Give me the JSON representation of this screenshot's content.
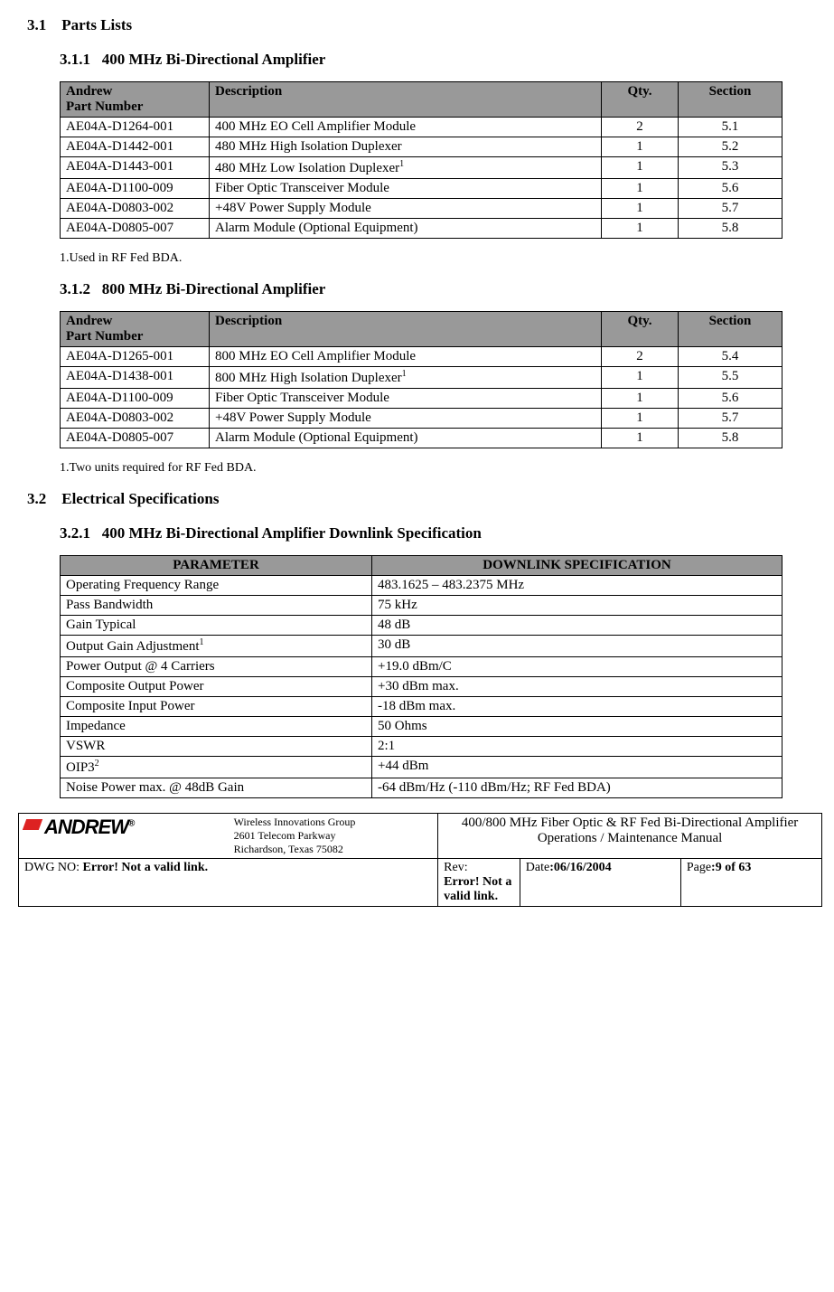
{
  "sec31": {
    "num": "3.1",
    "title": "Parts Lists"
  },
  "sec311": {
    "num": "3.1.1",
    "title": "400 MHz Bi-Directional Amplifier"
  },
  "thead": {
    "c1": "Andrew\nPart Number",
    "c2": "Description",
    "c3": "Qty.",
    "c4": "Section"
  },
  "t1rows": [
    {
      "pn": "AE04A-D1264-001",
      "desc": "400 MHz EO Cell Amplifier Module",
      "qty": "2",
      "sec": "5.1",
      "sup": ""
    },
    {
      "pn": "AE04A-D1442-001",
      "desc": "480 MHz High Isolation Duplexer",
      "qty": "1",
      "sec": "5.2",
      "sup": ""
    },
    {
      "pn": "AE04A-D1443-001",
      "desc": "480 MHz Low Isolation Duplexer",
      "qty": "1",
      "sec": "5.3",
      "sup": "1"
    },
    {
      "pn": "AE04A-D1100-009",
      "desc": "Fiber Optic Transceiver Module",
      "qty": "1",
      "sec": "5.6",
      "sup": ""
    },
    {
      "pn": "AE04A-D0803-002",
      "desc": "+48V Power Supply Module",
      "qty": "1",
      "sec": "5.7",
      "sup": ""
    },
    {
      "pn": "AE04A-D0805-007",
      "desc": "Alarm Module (Optional Equipment)",
      "qty": "1",
      "sec": "5.8",
      "sup": ""
    }
  ],
  "note1": "1.Used in RF Fed BDA.",
  "sec312": {
    "num": "3.1.2",
    "title": "800 MHz Bi-Directional Amplifier"
  },
  "t2rows": [
    {
      "pn": "AE04A-D1265-001",
      "desc": "800 MHz EO Cell Amplifier Module",
      "qty": "2",
      "sec": "5.4",
      "sup": ""
    },
    {
      "pn": "AE04A-D1438-001",
      "desc": "800 MHz High Isolation Duplexer",
      "qty": "1",
      "sec": "5.5",
      "sup": "1"
    },
    {
      "pn": "AE04A-D1100-009",
      "desc": "Fiber Optic Transceiver Module",
      "qty": "1",
      "sec": "5.6",
      "sup": ""
    },
    {
      "pn": "AE04A-D0803-002",
      "desc": "+48V Power Supply Module",
      "qty": "1",
      "sec": "5.7",
      "sup": ""
    },
    {
      "pn": "AE04A-D0805-007",
      "desc": "Alarm Module (Optional Equipment)",
      "qty": "1",
      "sec": "5.8",
      "sup": ""
    }
  ],
  "note2": "1.Two units required for RF Fed BDA.",
  "sec32": {
    "num": "3.2",
    "title": "Electrical Specifications"
  },
  "sec321": {
    "num": "3.2.1",
    "title": "400 MHz Bi-Directional Amplifier Downlink Specification"
  },
  "spec_head": {
    "c1": "PARAMETER",
    "c2": "DOWNLINK SPECIFICATION"
  },
  "spec_rows": [
    {
      "p": "Operating Frequency Range",
      "v": "483.1625 – 483.2375 MHz",
      "sup": ""
    },
    {
      "p": "Pass Bandwidth",
      "v": "75 kHz",
      "sup": ""
    },
    {
      "p": "Gain Typical",
      "v": "48 dB",
      "sup": ""
    },
    {
      "p": "Output Gain Adjustment",
      "v": "30 dB",
      "sup": "1"
    },
    {
      "p": "Power Output @ 4 Carriers",
      "v": "+19.0 dBm/C",
      "sup": ""
    },
    {
      "p": "Composite Output Power",
      "v": "+30 dBm max.",
      "sup": ""
    },
    {
      "p": "Composite Input Power",
      "v": "-18 dBm max.",
      "sup": ""
    },
    {
      "p": "Impedance",
      "v": " 50 Ohms",
      "sup": ""
    },
    {
      "p": "VSWR",
      "v": "2:1",
      "sup": ""
    },
    {
      "p": "OIP3",
      "v": "+44 dBm",
      "sup": "2"
    },
    {
      "p": "Noise Power max. @ 48dB Gain",
      "v": "-64 dBm/Hz (-110 dBm/Hz; RF Fed BDA)",
      "sup": ""
    }
  ],
  "footer": {
    "logo": "ANDREW",
    "reg": "®",
    "addr1": "Wireless Innovations Group",
    "addr2": "2601 Telecom Parkway",
    "addr3": "Richardson, Texas 75082",
    "title": "400/800 MHz Fiber Optic & RF Fed Bi-Directional Amplifier Operations / Maintenance Manual",
    "dwg_label": "DWG NO: ",
    "dwg_val": "Error! Not a valid link.",
    "rev_label": "Rev:",
    "rev_val": "Error! Not a valid link.",
    "date_label": "Date",
    "date_val": ":06/16/2004",
    "page_label": "Page",
    "page_val": ":9 of 63"
  },
  "colors": {
    "header_bg": "#999999",
    "border": "#000000",
    "logo_red": "#d22"
  }
}
